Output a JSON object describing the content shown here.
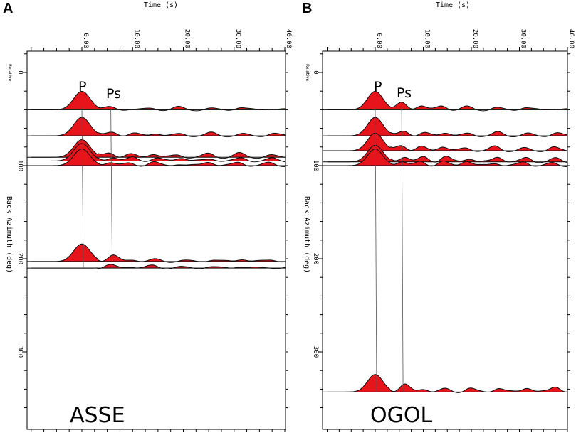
{
  "panels": [
    {
      "letter": "A",
      "station": "ASSE",
      "xlabel": "Time (s)",
      "ylabel": "Back Azimuth (deg)",
      "relative_label": "Relative",
      "phase_p": "P",
      "phase_ps": "Ps"
    },
    {
      "letter": "B",
      "station": "OGOL",
      "xlabel": "Time (s)",
      "ylabel": "Back Azimuth (deg)",
      "relative_label": "Relative",
      "phase_p": "P",
      "phase_ps": "Ps"
    }
  ],
  "chart_data": [
    {
      "type": "line",
      "title": "ASSE",
      "xlabel": "Time (s)",
      "ylabel": "Back Azimuth (deg)",
      "xlim": [
        -10,
        40
      ],
      "ylim": [
        370,
        -20
      ],
      "x_tick_labels": [
        "0.00",
        "10.00",
        "20.00",
        "30.00",
        "40.00"
      ],
      "x_ticks": [
        0,
        10,
        20,
        30,
        40
      ],
      "y_tick_labels": [
        "0",
        "100",
        "200",
        "300"
      ],
      "y_ticks": [
        0,
        100,
        200,
        300
      ],
      "fill_color": "#e8141c",
      "picks": [
        {
          "name": "P",
          "time": 0.0
        },
        {
          "name": "Ps",
          "time": 5.7
        }
      ],
      "traces": [
        {
          "baz": 40,
          "peak": 1.0,
          "amps": [
            0.12,
            0.05,
            0.07,
            0.13,
            0.06,
            0.12,
            0.08
          ]
        },
        {
          "baz": 68,
          "peak": 1.0,
          "amps": [
            0.2,
            0.12,
            0.15,
            0.1,
            0.15,
            0.08,
            0.12
          ]
        },
        {
          "baz": 91,
          "peak": 0.95,
          "amps": [
            0.25,
            0.15,
            0.2,
            0.12,
            0.18,
            0.2,
            0.1
          ]
        },
        {
          "baz": 95,
          "peak": 0.95,
          "amps": [
            0.22,
            0.18,
            0.15,
            0.2,
            0.12,
            0.15,
            0.12
          ]
        },
        {
          "baz": 100,
          "peak": 0.9,
          "amps": [
            0.2,
            0.12,
            0.18,
            0.1,
            0.22,
            0.18,
            0.14
          ]
        },
        {
          "baz": 203,
          "peak": 0.95,
          "amps": [
            0.32,
            0.12,
            0.1,
            0.05,
            0.1,
            0.15,
            0.1
          ]
        },
        {
          "baz": 210,
          "peak": 0.0,
          "amps": [
            0.15,
            0.1,
            0.12,
            0.05,
            0.08,
            0.1,
            0.05
          ]
        }
      ]
    },
    {
      "type": "line",
      "title": "OGOL",
      "xlabel": "Time (s)",
      "ylabel": "Back Azimuth (deg)",
      "xlim": [
        -10,
        40
      ],
      "ylim": [
        370,
        -20
      ],
      "x_tick_labels": [
        "0.00",
        "10.00",
        "20.00",
        "30.00",
        "40.00"
      ],
      "x_ticks": [
        0,
        10,
        20,
        30,
        40
      ],
      "y_tick_labels": [
        "0",
        "100",
        "200",
        "300"
      ],
      "y_ticks": [
        0,
        100,
        200,
        300
      ],
      "fill_color": "#e8141c",
      "picks": [
        {
          "name": "P",
          "time": 0.0
        },
        {
          "name": "Ps",
          "time": 5.5
        }
      ],
      "traces": [
        {
          "baz": 40,
          "peak": 1.0,
          "amps": [
            0.35,
            0.25,
            0.2,
            0.15,
            0.1,
            0.12,
            0.08
          ]
        },
        {
          "baz": 68,
          "peak": 1.0,
          "amps": [
            0.25,
            0.15,
            0.2,
            0.12,
            0.18,
            0.1,
            0.15
          ]
        },
        {
          "baz": 84,
          "peak": 0.95,
          "amps": [
            0.3,
            0.2,
            0.25,
            0.15,
            0.22,
            0.12,
            0.18
          ]
        },
        {
          "baz": 96,
          "peak": 0.9,
          "amps": [
            0.3,
            0.25,
            0.3,
            0.2,
            0.28,
            0.22,
            0.18
          ]
        },
        {
          "baz": 100,
          "peak": 0.9,
          "amps": [
            0.25,
            0.2,
            0.22,
            0.28,
            0.15,
            0.2,
            0.12
          ]
        },
        {
          "baz": 343,
          "peak": 0.95,
          "amps": [
            0.4,
            0.18,
            0.15,
            0.2,
            0.22,
            0.25,
            0.3
          ]
        }
      ]
    }
  ]
}
